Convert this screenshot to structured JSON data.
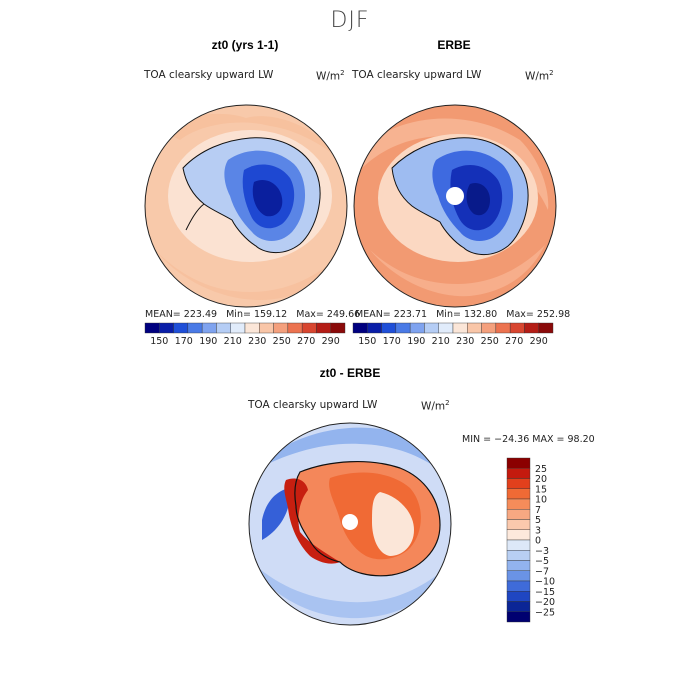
{
  "season": "DJF",
  "panels": [
    {
      "title": "zt0 (yrs 1-1)",
      "subtitle": "TOA clearsky upward LW",
      "units_base": "W/m",
      "units_exp": "2",
      "stats": {
        "mean": "223.49",
        "min": "159.12",
        "max": "249.66"
      }
    },
    {
      "title": "ERBE",
      "subtitle": "TOA clearsky upward LW",
      "units_base": "W/m",
      "units_exp": "2",
      "stats": {
        "mean": "223.71",
        "min": "132.80",
        "max": "252.98"
      }
    },
    {
      "title": "zt0 - ERBE",
      "subtitle": "TOA clearsky upward LW",
      "units_base": "W/m",
      "units_exp": "2",
      "stats_text": "MIN = −24.36 MAX =  98.20"
    }
  ],
  "stat_labels": {
    "mean": "MEAN=",
    "min": "Min=",
    "max": "Max="
  },
  "chart_data": [
    {
      "type": "heatmap",
      "title": "zt0 (yrs 1-1)",
      "projection": "south-polar-stereographic",
      "region": "Antarctica",
      "colorbar_ticks": [
        "150",
        "170",
        "190",
        "210",
        "230",
        "250",
        "270",
        "290"
      ],
      "colorbar_colors": [
        "#00007f",
        "#0a1ea8",
        "#1f4fd8",
        "#4a7ae6",
        "#7fa3ef",
        "#b5cdf5",
        "#e1ecfb",
        "#fbe6d8",
        "#f9c6a8",
        "#f4a07d",
        "#ec7350",
        "#d84630",
        "#b41d16",
        "#8a0a0a"
      ],
      "approx_field": {
        "ocean": "≈240",
        "coast": "≈230",
        "interior": "≈160–180"
      },
      "stats": {
        "mean": 223.49,
        "min": 159.12,
        "max": 249.66
      }
    },
    {
      "type": "heatmap",
      "title": "ERBE",
      "projection": "south-polar-stereographic",
      "region": "Antarctica",
      "colorbar_ticks": [
        "150",
        "170",
        "190",
        "210",
        "230",
        "250",
        "270",
        "290"
      ],
      "approx_field": {
        "ocean": "≈245–255",
        "coast": "≈230",
        "interior": "≈150–180"
      },
      "stats": {
        "mean": 223.71,
        "min": 132.8,
        "max": 252.98
      }
    },
    {
      "type": "heatmap",
      "title": "zt0 - ERBE",
      "projection": "south-polar-stereographic",
      "region": "Antarctica",
      "colorbar_levels": [
        "25",
        "20",
        "15",
        "10",
        "7",
        "5",
        "3",
        "0",
        "−3",
        "−5",
        "−7",
        "−10",
        "−15",
        "−20",
        "−25"
      ],
      "colorbar_colors": [
        "#8b0000",
        "#c41a0e",
        "#e2401c",
        "#f06a35",
        "#f58c5a",
        "#f7a882",
        "#fbc9ad",
        "#fde9dc",
        "#dde8f8",
        "#b8cff3",
        "#92b3ee",
        "#6a93e6",
        "#3f6bd9",
        "#1f46c2",
        "#0b2596",
        "#000070"
      ],
      "approx_field": {
        "ocean": "≈−3 to 0",
        "antarctic_continent": "≈7–15",
        "peninsula": "≈15–25"
      },
      "min": -24.36,
      "max": 98.2
    }
  ]
}
